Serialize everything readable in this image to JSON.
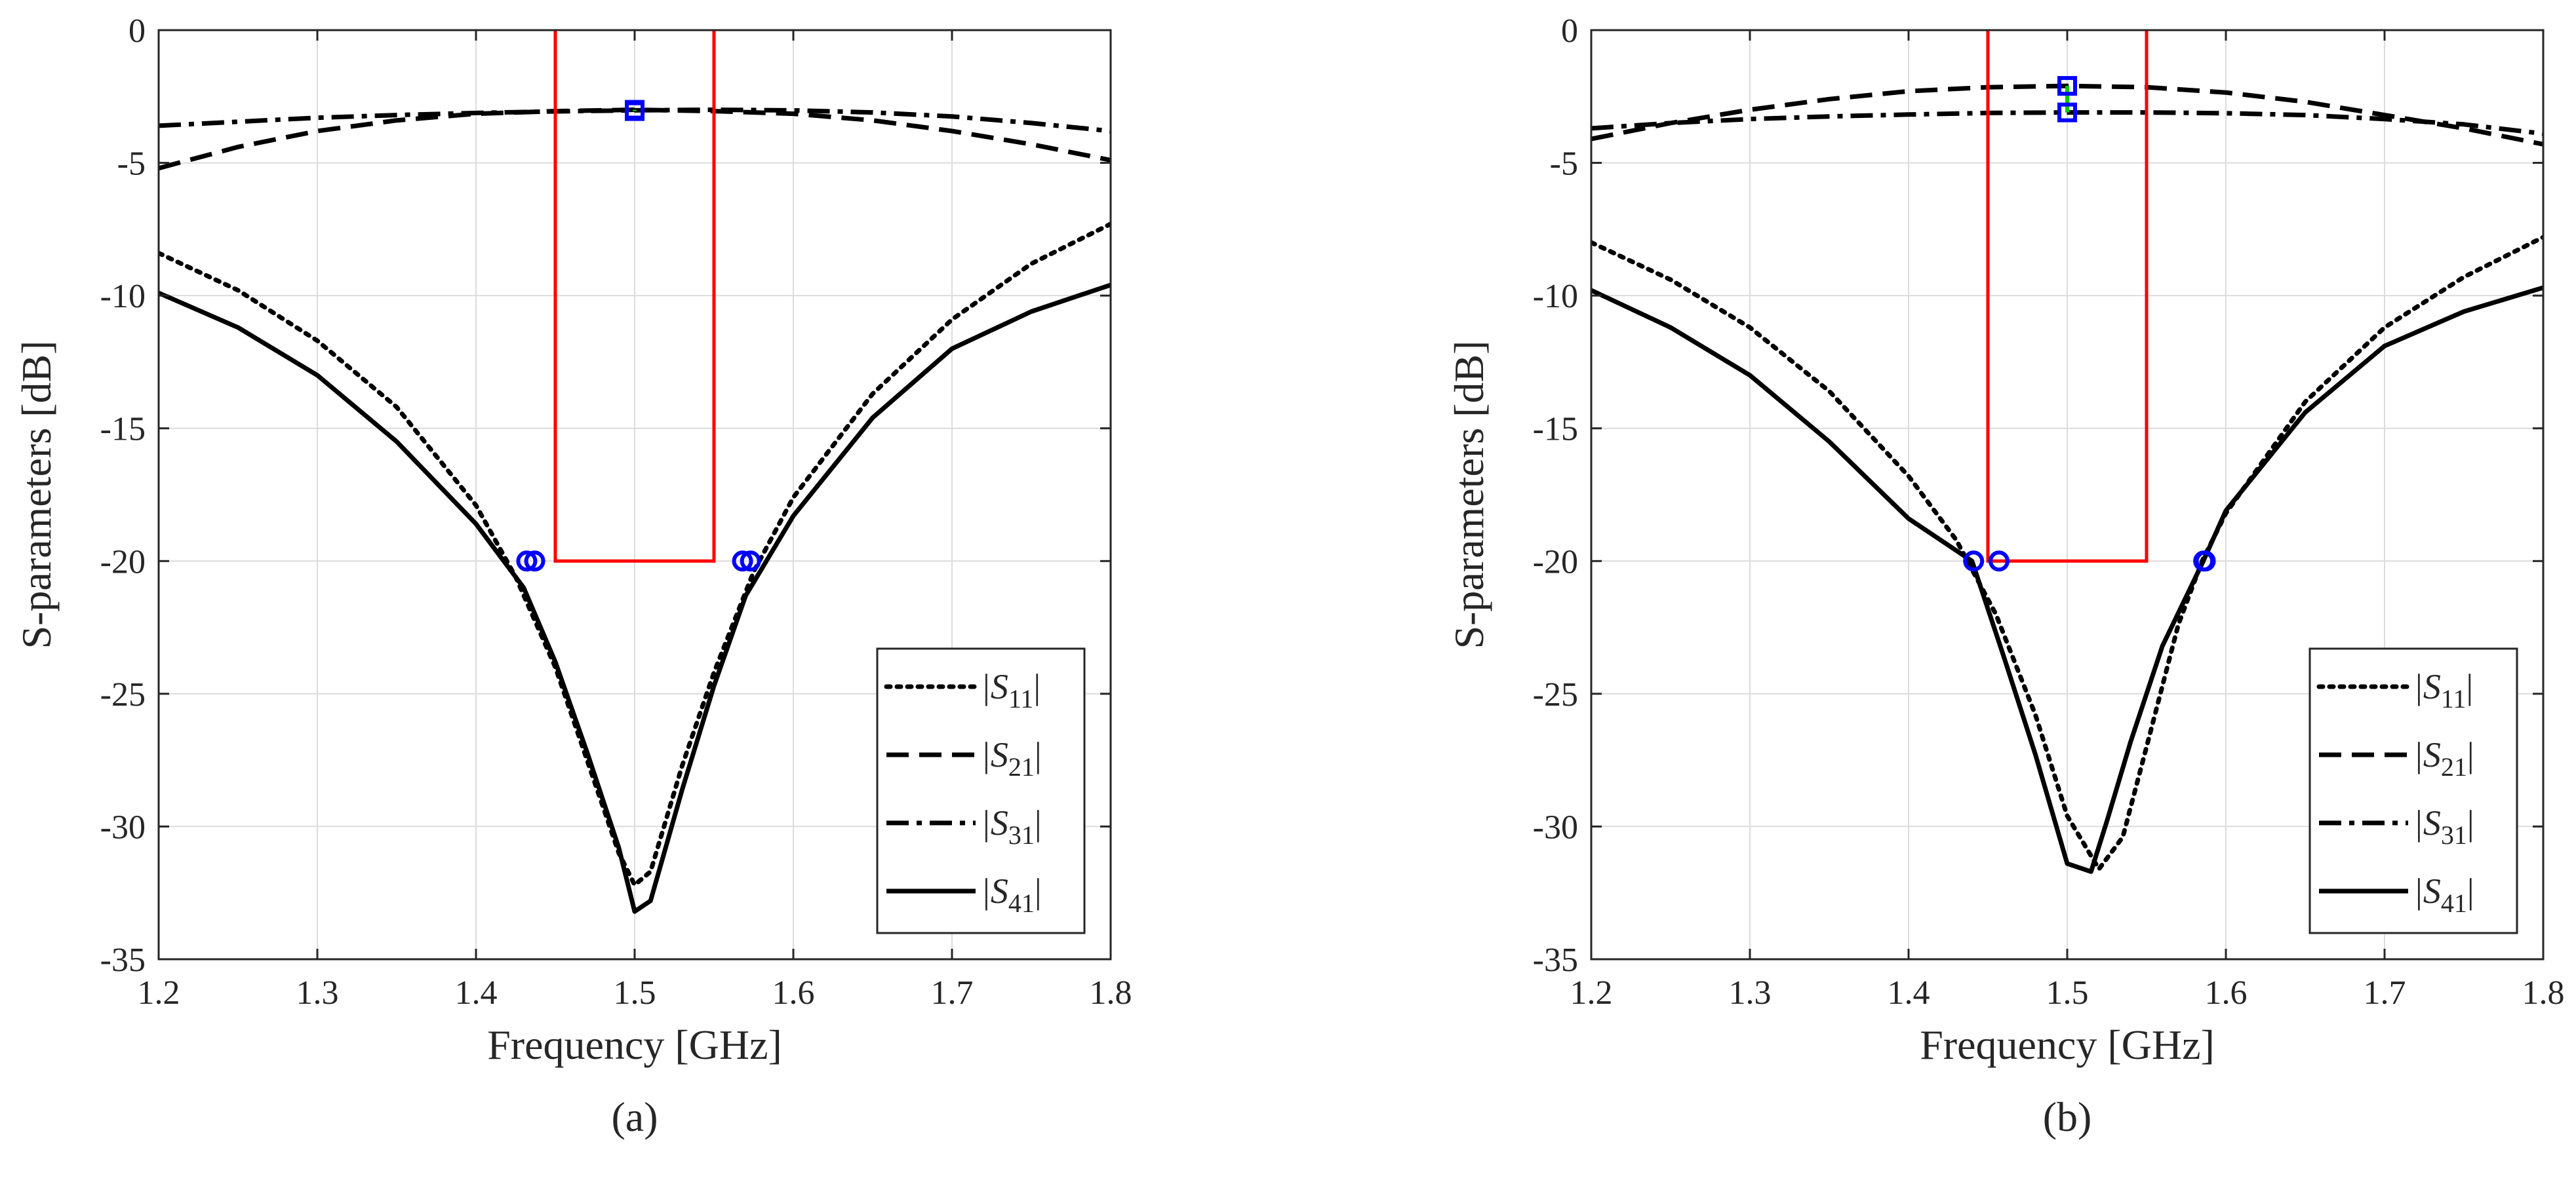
{
  "chart_data": [
    {
      "type": "line",
      "panel_label": "(a)",
      "xlabel": "Frequency [GHz]",
      "ylabel": "S-parameters [dB]",
      "xlim": [
        1.2,
        1.8
      ],
      "ylim": [
        -35,
        0
      ],
      "xticks": [
        1.2,
        1.3,
        1.4,
        1.5,
        1.6,
        1.7,
        1.8
      ],
      "yticks": [
        0,
        -5,
        -10,
        -15,
        -20,
        -25,
        -30,
        -35
      ],
      "xtick_labels": [
        "1.2",
        "1.3",
        "1.4",
        "1.5",
        "1.6",
        "1.7",
        "1.8"
      ],
      "ytick_labels": [
        "0",
        "-5",
        "-10",
        "-15",
        "-20",
        "-25",
        "-30",
        "-35"
      ],
      "grid": true,
      "legend_position": "bottom-right",
      "series": [
        {
          "name": "|S11|",
          "legend_main": "|S",
          "legend_sub": "11",
          "legend_end": "|",
          "style": "dotted",
          "x": [
            1.2,
            1.25,
            1.3,
            1.35,
            1.4,
            1.425,
            1.45,
            1.47,
            1.49,
            1.5,
            1.51,
            1.53,
            1.55,
            1.575,
            1.6,
            1.65,
            1.7,
            1.75,
            1.8
          ],
          "y": [
            -8.4,
            -9.8,
            -11.7,
            -14.2,
            -17.9,
            -20.6,
            -24.0,
            -27.5,
            -31.0,
            -32.2,
            -31.7,
            -27.7,
            -24.2,
            -20.4,
            -17.6,
            -13.7,
            -10.9,
            -8.8,
            -7.3
          ]
        },
        {
          "name": "|S21|",
          "legend_main": "|S",
          "legend_sub": "21",
          "legend_end": "|",
          "style": "dashed",
          "x": [
            1.2,
            1.25,
            1.3,
            1.35,
            1.4,
            1.45,
            1.5,
            1.55,
            1.6,
            1.65,
            1.7,
            1.75,
            1.8
          ],
          "y": [
            -5.2,
            -4.4,
            -3.8,
            -3.4,
            -3.15,
            -3.05,
            -3.0,
            -3.05,
            -3.15,
            -3.4,
            -3.8,
            -4.3,
            -4.9
          ]
        },
        {
          "name": "|S31|",
          "legend_main": "|S",
          "legend_sub": "31",
          "legend_end": "|",
          "style": "dashdot",
          "x": [
            1.2,
            1.25,
            1.3,
            1.35,
            1.4,
            1.45,
            1.5,
            1.55,
            1.6,
            1.65,
            1.7,
            1.75,
            1.8
          ],
          "y": [
            -3.6,
            -3.45,
            -3.3,
            -3.2,
            -3.12,
            -3.06,
            -3.02,
            -3.0,
            -3.02,
            -3.1,
            -3.25,
            -3.5,
            -3.8
          ]
        },
        {
          "name": "|S41|",
          "legend_main": "|S",
          "legend_sub": "41",
          "legend_end": "|",
          "style": "solid",
          "x": [
            1.2,
            1.25,
            1.3,
            1.35,
            1.4,
            1.43,
            1.45,
            1.47,
            1.49,
            1.5,
            1.51,
            1.53,
            1.55,
            1.57,
            1.6,
            1.65,
            1.7,
            1.75,
            1.8
          ],
          "y": [
            -9.9,
            -11.2,
            -13.0,
            -15.5,
            -18.6,
            -21.0,
            -23.8,
            -27.2,
            -30.8,
            -33.2,
            -32.8,
            -28.6,
            -24.7,
            -21.3,
            -18.3,
            -14.6,
            -12.0,
            -10.6,
            -9.6
          ]
        }
      ],
      "spec_mask": {
        "x": [
          1.45,
          1.45,
          1.55,
          1.55
        ],
        "y": [
          0,
          -20,
          -20,
          0
        ],
        "color": "#ff0000"
      },
      "circle_markers": {
        "x": [
          1.432,
          1.437,
          1.568,
          1.573
        ],
        "y": [
          -20,
          -20,
          -20,
          -20
        ],
        "color": "#0000ff"
      },
      "square_markers": {
        "x": [
          1.5,
          1.5
        ],
        "y": [
          -3.0,
          -3.05
        ],
        "color": "#0000ff",
        "link_color": "#00cc00"
      }
    },
    {
      "type": "line",
      "panel_label": "(b)",
      "xlabel": "Frequency [GHz]",
      "ylabel": "S-parameters [dB]",
      "xlim": [
        1.2,
        1.8
      ],
      "ylim": [
        -35,
        0
      ],
      "xticks": [
        1.2,
        1.3,
        1.4,
        1.5,
        1.6,
        1.7,
        1.8
      ],
      "yticks": [
        0,
        -5,
        -10,
        -15,
        -20,
        -25,
        -30,
        -35
      ],
      "xtick_labels": [
        "1.2",
        "1.3",
        "1.4",
        "1.5",
        "1.6",
        "1.7",
        "1.8"
      ],
      "ytick_labels": [
        "0",
        "-5",
        "-10",
        "-15",
        "-20",
        "-25",
        "-30",
        "-35"
      ],
      "grid": true,
      "legend_position": "bottom-right",
      "series": [
        {
          "name": "|S11|",
          "legend_main": "|S",
          "legend_sub": "11",
          "legend_end": "|",
          "style": "dotted",
          "x": [
            1.2,
            1.25,
            1.3,
            1.35,
            1.4,
            1.43,
            1.455,
            1.48,
            1.5,
            1.52,
            1.535,
            1.55,
            1.57,
            1.585,
            1.6,
            1.65,
            1.7,
            1.75,
            1.8
          ],
          "y": [
            -8.0,
            -9.4,
            -11.2,
            -13.6,
            -16.8,
            -19.2,
            -22.0,
            -25.8,
            -29.6,
            -31.6,
            -30.4,
            -27.0,
            -22.4,
            -20.0,
            -18.2,
            -14.0,
            -11.2,
            -9.3,
            -7.8
          ]
        },
        {
          "name": "|S21|",
          "legend_main": "|S",
          "legend_sub": "21",
          "legend_end": "|",
          "style": "dashed",
          "x": [
            1.2,
            1.25,
            1.3,
            1.35,
            1.4,
            1.45,
            1.5,
            1.55,
            1.6,
            1.65,
            1.7,
            1.75,
            1.8
          ],
          "y": [
            -4.1,
            -3.5,
            -3.0,
            -2.6,
            -2.3,
            -2.15,
            -2.1,
            -2.15,
            -2.35,
            -2.7,
            -3.2,
            -3.7,
            -4.3
          ]
        },
        {
          "name": "|S31|",
          "legend_main": "|S",
          "legend_sub": "31",
          "legend_end": "|",
          "style": "dashdot",
          "x": [
            1.2,
            1.25,
            1.3,
            1.35,
            1.4,
            1.45,
            1.5,
            1.55,
            1.6,
            1.65,
            1.7,
            1.75,
            1.8
          ],
          "y": [
            -3.7,
            -3.5,
            -3.35,
            -3.25,
            -3.18,
            -3.12,
            -3.1,
            -3.1,
            -3.13,
            -3.2,
            -3.35,
            -3.55,
            -3.9
          ]
        },
        {
          "name": "|S41|",
          "legend_main": "|S",
          "legend_sub": "41",
          "legend_end": "|",
          "style": "solid",
          "x": [
            1.2,
            1.25,
            1.3,
            1.35,
            1.4,
            1.44,
            1.46,
            1.48,
            1.5,
            1.515,
            1.525,
            1.54,
            1.56,
            1.585,
            1.6,
            1.65,
            1.7,
            1.75,
            1.8
          ],
          "y": [
            -9.8,
            -11.2,
            -13.0,
            -15.5,
            -18.4,
            -20.0,
            -23.6,
            -27.3,
            -31.4,
            -31.7,
            -29.8,
            -26.8,
            -23.2,
            -20.1,
            -18.1,
            -14.4,
            -11.9,
            -10.6,
            -9.7
          ]
        }
      ],
      "spec_mask": {
        "x": [
          1.45,
          1.45,
          1.55,
          1.55
        ],
        "y": [
          0,
          -20,
          -20,
          0
        ],
        "color": "#ff0000"
      },
      "circle_markers": {
        "x": [
          1.441,
          1.457,
          1.586,
          1.587
        ],
        "y": [
          -20,
          -20,
          -20,
          -20
        ],
        "color": "#0000ff"
      },
      "square_markers": {
        "x": [
          1.5,
          1.5
        ],
        "y": [
          -2.1,
          -3.1
        ],
        "color": "#0000ff",
        "link_color": "#00cc00"
      }
    }
  ]
}
